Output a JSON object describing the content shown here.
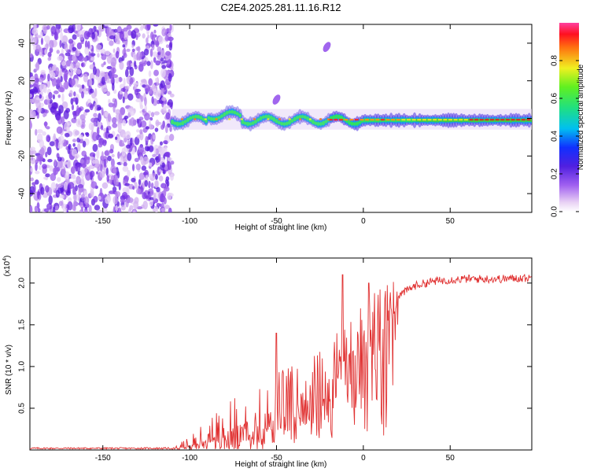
{
  "title": "C2E4.2025.281.11.16.R12",
  "chart_data": [
    {
      "type": "heatmap",
      "name": "spectrogram",
      "xlabel": "Height of straight line (km)",
      "ylabel": "Frequency (Hz)",
      "xlim": [
        -192,
        97
      ],
      "ylim": [
        -50,
        50
      ],
      "xticks": [
        -150,
        -100,
        -50,
        0,
        50
      ],
      "yticks": [
        -40,
        -20,
        0,
        20,
        40
      ],
      "colorbar": {
        "label": "Normalized spectral amplitude",
        "range": [
          0.0,
          1.0
        ],
        "ticks": [
          0.0,
          0.2,
          0.4,
          0.6,
          0.8
        ]
      },
      "description_values": {
        "noise_region_x": [
          -192,
          -110
        ],
        "line_segment_x": [
          -110,
          97
        ],
        "line_center_freq": [
          -2,
          0
        ],
        "isolated_features": [
          {
            "x": -21,
            "y": 38
          },
          {
            "x": -50,
            "y": 10
          }
        ]
      }
    },
    {
      "type": "line",
      "name": "snr",
      "xlabel": "Height of straight line (km)",
      "ylabel": "SNR (10 * v/v)",
      "y_scale_note": "(x10",
      "y_scale_exponent": "4",
      "xlim": [
        -192,
        97
      ],
      "ylim": [
        0,
        2.3
      ],
      "xticks": [
        -150,
        -100,
        -50,
        0,
        50
      ],
      "yticks": [
        0.5,
        1.0,
        1.5,
        2.0
      ],
      "series": [
        {
          "name": "SNR",
          "color": "#e03030",
          "x": [
            -192,
            -110,
            -100,
            -90,
            -80,
            -70,
            -60,
            -50,
            -40,
            -30,
            -20,
            -10,
            0,
            10,
            20,
            30,
            40,
            50,
            60,
            70,
            80,
            90,
            97
          ],
          "y": [
            0.02,
            0.02,
            0.05,
            0.12,
            0.22,
            0.32,
            0.42,
            0.5,
            0.58,
            0.7,
            0.85,
            1.1,
            1.35,
            1.65,
            1.85,
            1.97,
            2.02,
            2.04,
            2.05,
            2.05,
            2.05,
            2.06,
            2.06
          ],
          "peaks": [
            {
              "x": -50,
              "y": 1.4
            },
            {
              "x": -12,
              "y": 2.1
            },
            {
              "x": 3,
              "y": 2.0
            }
          ]
        }
      ]
    }
  ]
}
